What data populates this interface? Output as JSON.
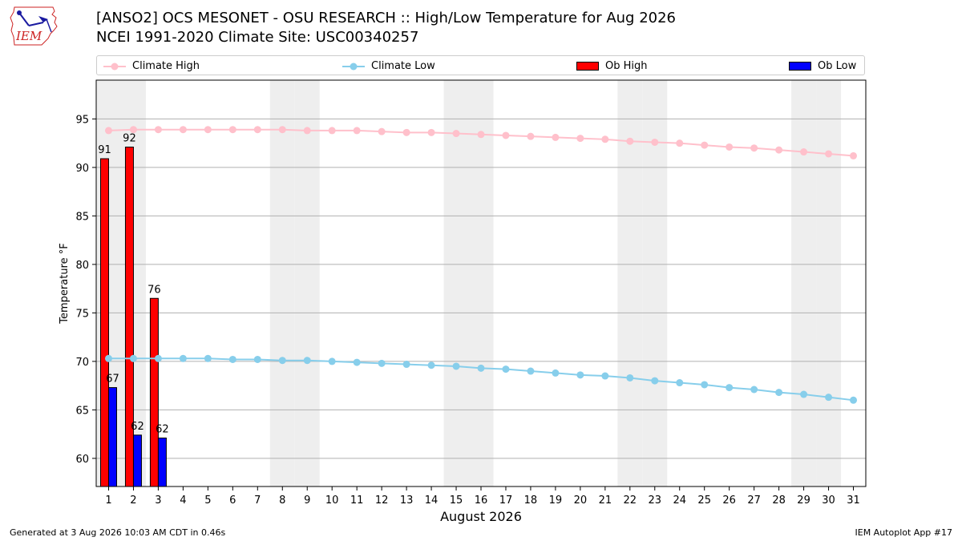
{
  "logo": {
    "text": "IEM"
  },
  "titles": {
    "line1": "[ANSO2] OCS MESONET - OSU RESEARCH :: High/Low Temperature for Aug 2026",
    "line2": "NCEI 1991-2020 Climate Site: USC00340257"
  },
  "legend": {
    "climate_high": "Climate High",
    "climate_low": "Climate Low",
    "ob_high": "Ob High",
    "ob_low": "Ob Low"
  },
  "colors": {
    "climate_high": "#ffc0cb",
    "climate_low": "#87ceeb",
    "ob_high": "#ff0000",
    "ob_low": "#0000ff",
    "weekend_shade": "#eeeeee",
    "grid": "#b0b0b0"
  },
  "footer": {
    "left": "Generated at 3 Aug 2026 10:03 AM CDT in 0.46s",
    "right": "IEM Autoplot App #17"
  },
  "chart_data": {
    "type": "bar",
    "xlabel": "August 2026",
    "ylabel": "Temperature °F",
    "ylim": [
      57.1,
      99.0
    ],
    "yticks": [
      60,
      65,
      70,
      75,
      80,
      85,
      90,
      95
    ],
    "grid": true,
    "legend_position": "top",
    "days": [
      1,
      2,
      3,
      4,
      5,
      6,
      7,
      8,
      9,
      10,
      11,
      12,
      13,
      14,
      15,
      16,
      17,
      18,
      19,
      20,
      21,
      22,
      23,
      24,
      25,
      26,
      27,
      28,
      29,
      30,
      31
    ],
    "shaded_days": [
      1,
      2,
      8,
      9,
      15,
      16,
      22,
      23,
      29,
      30
    ],
    "climate_high": [
      93.8,
      93.9,
      93.9,
      93.9,
      93.9,
      93.9,
      93.9,
      93.9,
      93.8,
      93.8,
      93.8,
      93.7,
      93.6,
      93.6,
      93.5,
      93.4,
      93.3,
      93.2,
      93.1,
      93.0,
      92.9,
      92.7,
      92.6,
      92.5,
      92.3,
      92.1,
      92.0,
      91.8,
      91.6,
      91.4,
      91.2
    ],
    "climate_low": [
      70.3,
      70.3,
      70.3,
      70.3,
      70.3,
      70.2,
      70.2,
      70.1,
      70.1,
      70.0,
      69.9,
      69.8,
      69.7,
      69.6,
      69.5,
      69.3,
      69.2,
      69.0,
      68.8,
      68.6,
      68.5,
      68.3,
      68.0,
      67.8,
      67.6,
      67.3,
      67.1,
      66.8,
      66.6,
      66.3,
      66.0
    ],
    "ob_high": [
      91,
      92,
      76
    ],
    "ob_high_values": [
      90.9,
      92.1,
      76.5
    ],
    "ob_low": [
      67,
      62,
      62
    ],
    "ob_low_values": [
      67.3,
      62.4,
      62.1
    ]
  }
}
